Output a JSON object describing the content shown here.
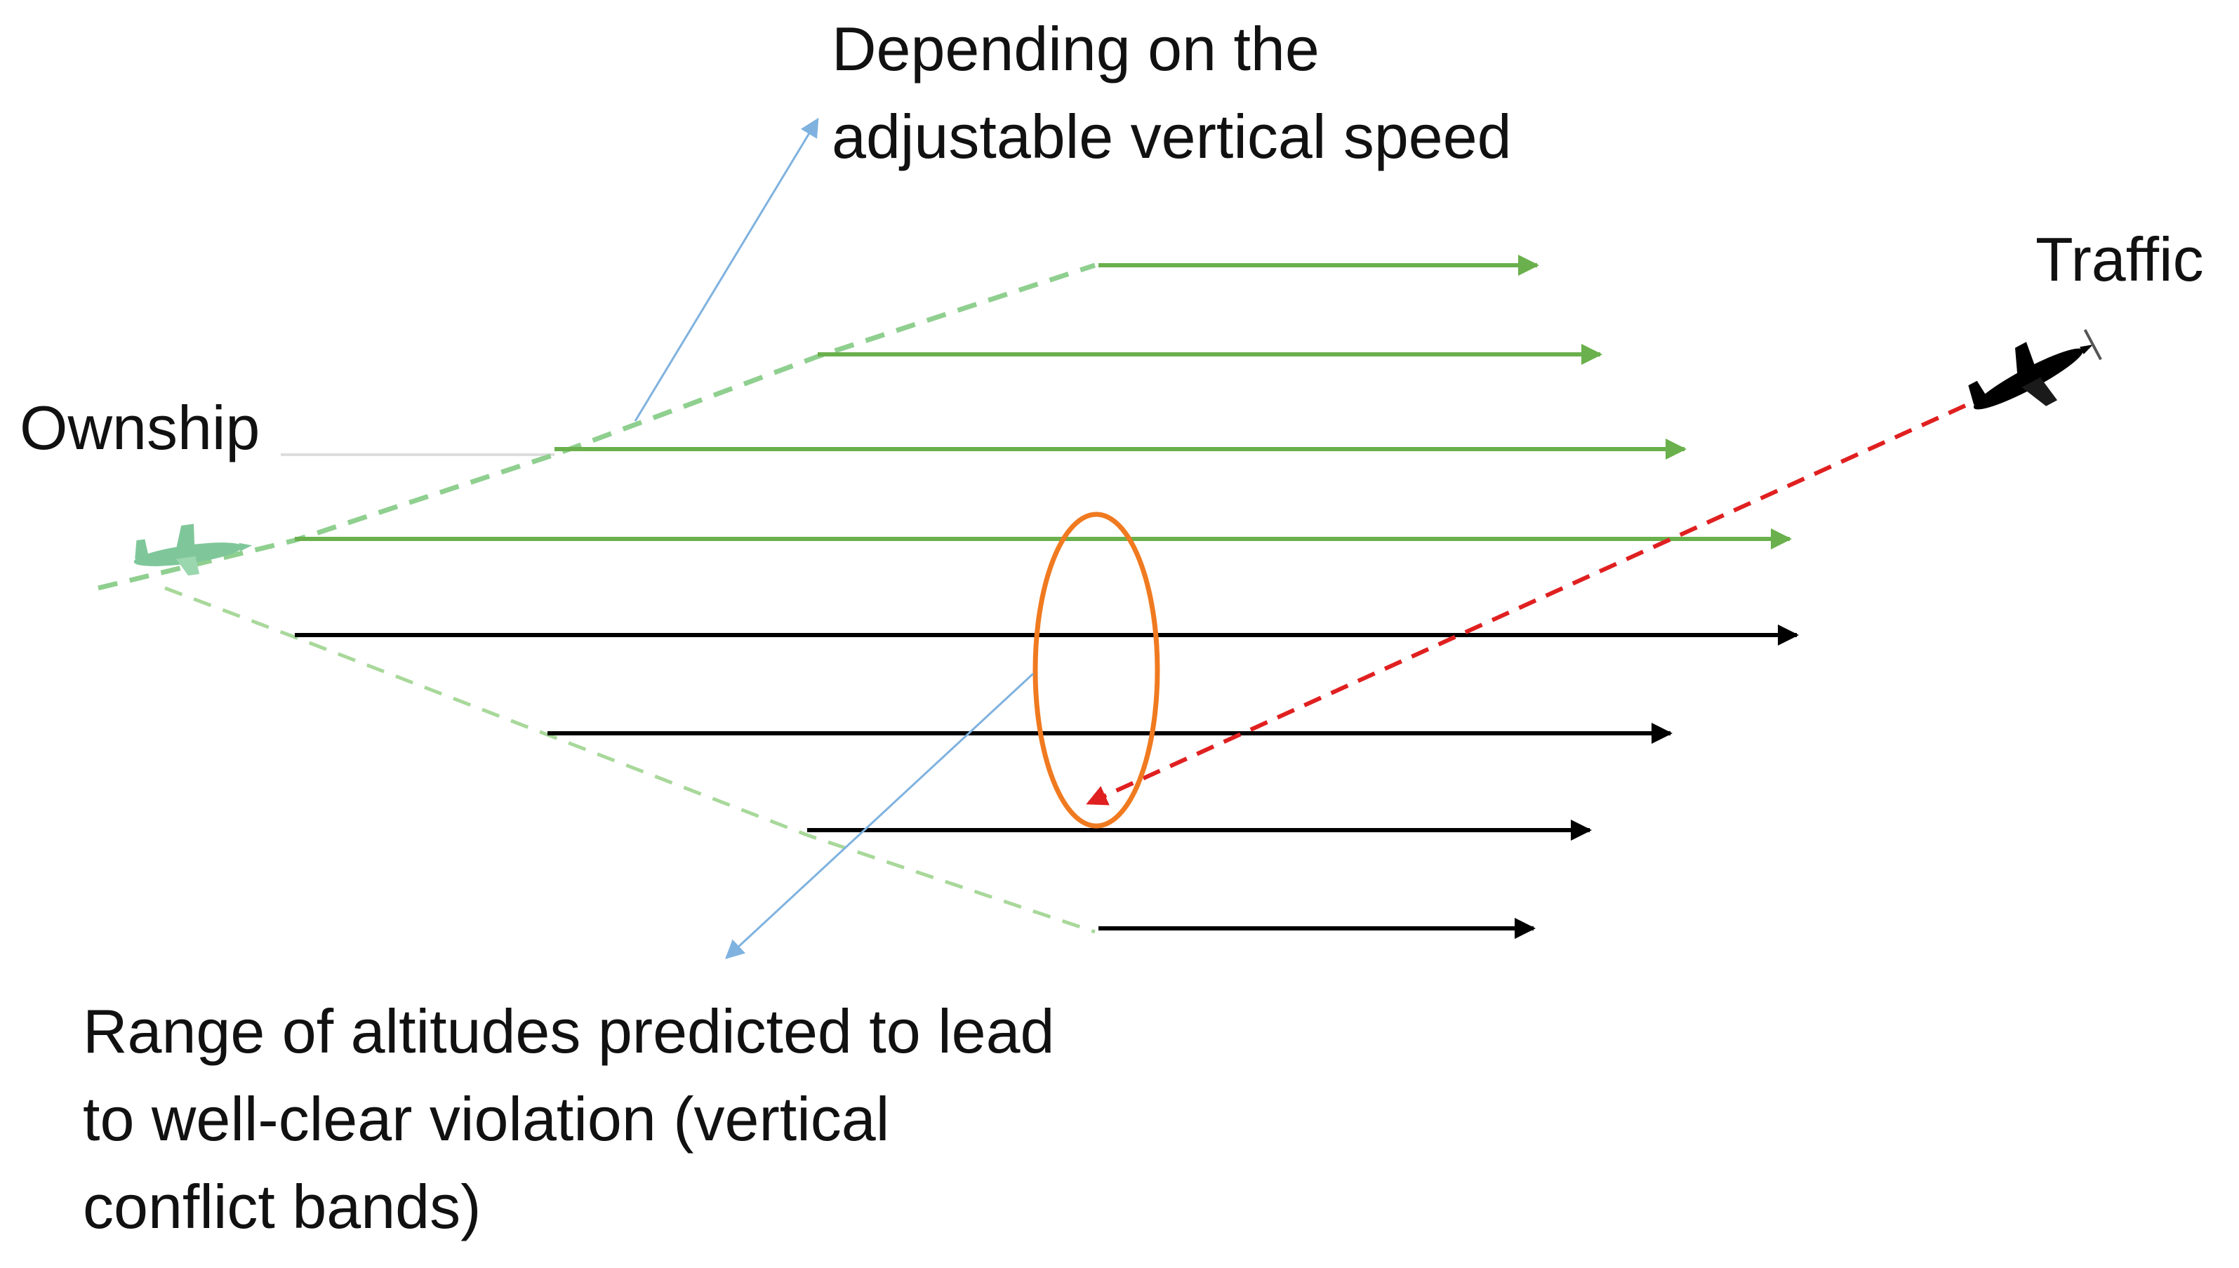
{
  "labels": {
    "top_note": [
      "Depending on the",
      "adjustable vertical speed"
    ],
    "traffic": "Traffic",
    "ownship": "Ownship",
    "bottom_note": [
      "Range of altitudes predicted to lead",
      "to well-clear violation (vertical",
      "conflict bands)"
    ]
  },
  "colors": {
    "safe_band": "#6ab04c",
    "conflict_band": "#000000",
    "dashed_envelope": "#8fcf8f",
    "traffic_path": "#e02020",
    "ellipse": "#f07a20",
    "callout": "#7fb2df",
    "ownship_aircraft": "#7fc79a",
    "traffic_aircraft": "#000000"
  },
  "bands": [
    {
      "kind": "safe"
    },
    {
      "kind": "safe"
    },
    {
      "kind": "safe"
    },
    {
      "kind": "safe"
    },
    {
      "kind": "conflict"
    },
    {
      "kind": "conflict"
    },
    {
      "kind": "conflict"
    },
    {
      "kind": "conflict"
    }
  ],
  "icons": {
    "ownship": "small-aircraft-icon",
    "traffic": "small-aircraft-icon"
  }
}
